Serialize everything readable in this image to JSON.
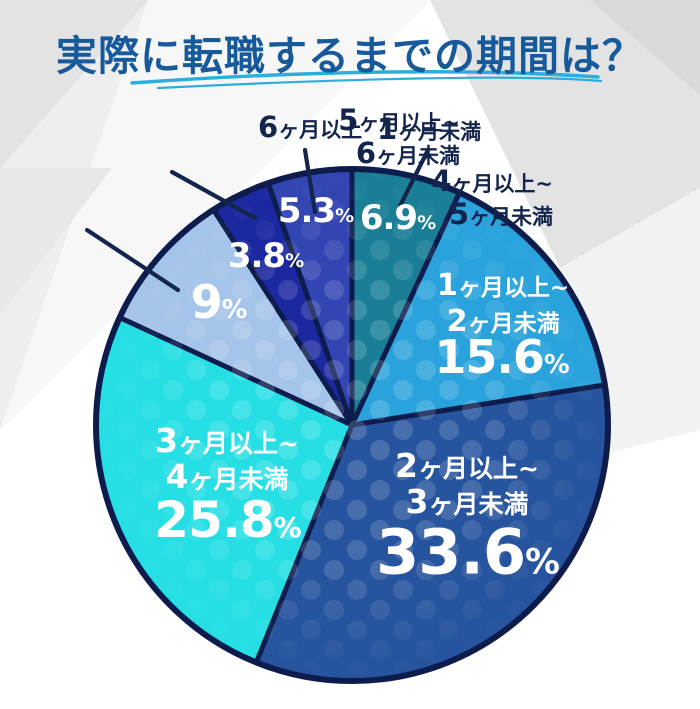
{
  "page": {
    "title": "実際に転職するまでの期間は？"
  },
  "chart_data": {
    "type": "pie",
    "title": "実際に転職するまでの期間は？",
    "unit": "%",
    "start_angle_deg": 0,
    "direction": "clockwise",
    "legend_position": "none",
    "total": 100,
    "segments": [
      {
        "label": "1ヶ月未満",
        "value": 6.9,
        "display_value": "6.9",
        "color": "#1a7f96",
        "label_style": "outside-callout"
      },
      {
        "label": "1ヶ月以上~2ヶ月未満",
        "label_lines": [
          "1ヶ月以上~",
          "2ヶ月未満"
        ],
        "value": 15.6,
        "display_value": "15.6",
        "color": "#2aa3dc",
        "label_style": "inside"
      },
      {
        "label": "2ヶ月以上~3ヶ月未満",
        "label_lines": [
          "2ヶ月以上~",
          "3ヶ月未満"
        ],
        "value": 33.6,
        "display_value": "33.6",
        "color": "#27549e",
        "label_style": "inside"
      },
      {
        "label": "3ヶ月以上~4ヶ月未満",
        "label_lines": [
          "3ヶ月以上~",
          "4ヶ月未満"
        ],
        "value": 25.8,
        "display_value": "25.8",
        "color": "#25dfe4",
        "label_style": "inside"
      },
      {
        "label": "4ヶ月以上~5ヶ月未満",
        "label_lines": [
          "4ヶ月以上~",
          "5ヶ月未満"
        ],
        "value": 9,
        "display_value": "9",
        "color": "#a5c4e9",
        "label_style": "outside-callout"
      },
      {
        "label": "5ヶ月以上~6ヶ月未満",
        "label_lines": [
          "5ヶ月以上~",
          "6ヶ月未満"
        ],
        "value": 3.8,
        "display_value": "3.8",
        "color": "#1c28a0",
        "label_style": "outside-callout"
      },
      {
        "label": "6ヶ月以上",
        "value": 5.3,
        "display_value": "5.3",
        "color": "#3345b3",
        "label_style": "outside-callout"
      }
    ],
    "outline_color": "#0d1c4d",
    "dots_overlay": "halftone-dots"
  },
  "colors": {
    "title_text": "#175a9c",
    "underline_accent": "#2aaede",
    "callout_text": "#13254d",
    "value_text": "#ffffff",
    "background_base": "#efefef"
  }
}
